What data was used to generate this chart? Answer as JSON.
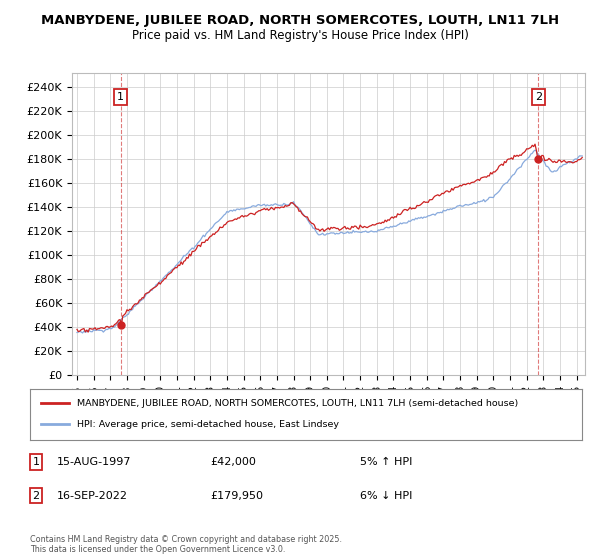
{
  "title": "MANBYDENE, JUBILEE ROAD, NORTH SOMERCOTES, LOUTH, LN11 7LH",
  "subtitle": "Price paid vs. HM Land Registry's House Price Index (HPI)",
  "ylabel_ticks": [
    "£0",
    "£20K",
    "£40K",
    "£60K",
    "£80K",
    "£100K",
    "£120K",
    "£140K",
    "£160K",
    "£180K",
    "£200K",
    "£220K",
    "£240K"
  ],
  "ytick_values": [
    0,
    20000,
    40000,
    60000,
    80000,
    100000,
    120000,
    140000,
    160000,
    180000,
    200000,
    220000,
    240000
  ],
  "ylim": [
    0,
    252000
  ],
  "sale1": {
    "date": "15-AUG-1997",
    "price": "42,000",
    "pct": "5% ↑ HPI",
    "label": "1",
    "year": 1997.625,
    "value": 42000
  },
  "sale2": {
    "date": "16-SEP-2022",
    "price": "179,950",
    "pct": "6% ↓ HPI",
    "label": "2",
    "year": 2022.708,
    "value": 179950
  },
  "red_line_color": "#cc2222",
  "blue_line_color": "#88aadd",
  "legend_red": "MANBYDENE, JUBILEE ROAD, NORTH SOMERCOTES, LOUTH, LN11 7LH (semi-detached house)",
  "legend_blue": "HPI: Average price, semi-detached house, East Lindsey",
  "footnote": "Contains HM Land Registry data © Crown copyright and database right 2025.\nThis data is licensed under the Open Government Licence v3.0.",
  "background_color": "#ffffff",
  "grid_color": "#cccccc",
  "xlim_left": 1994.7,
  "xlim_right": 2025.5
}
